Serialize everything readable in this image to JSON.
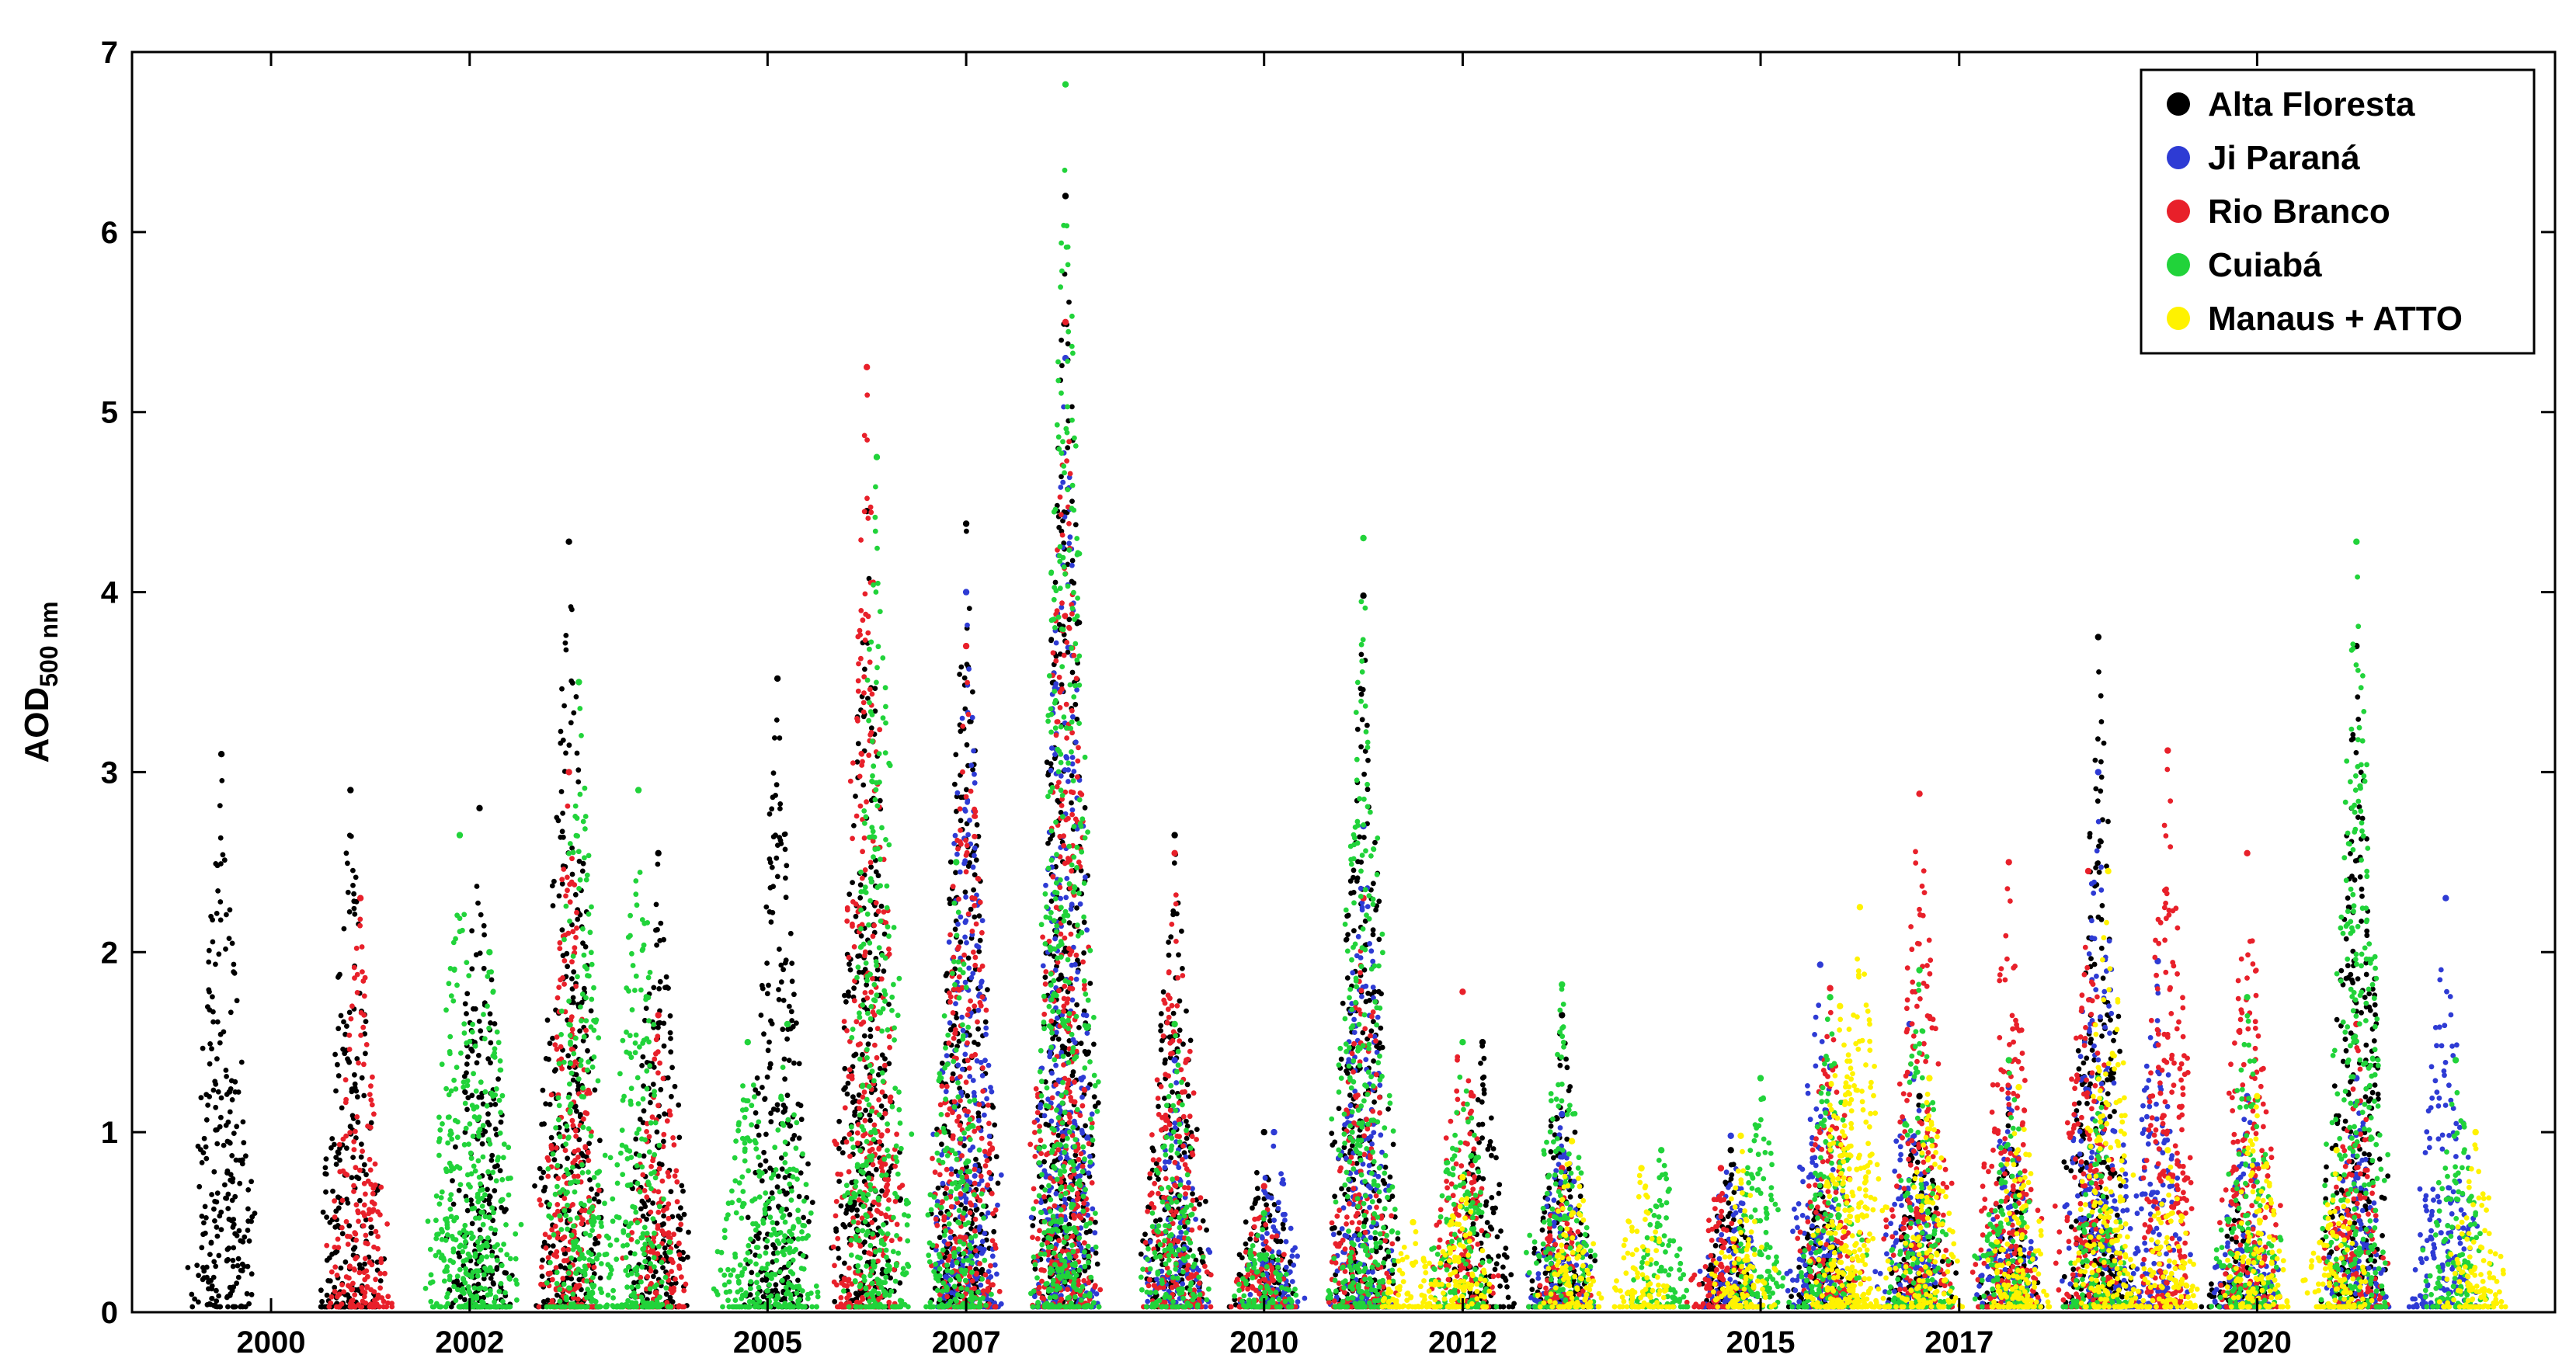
{
  "chart_data": {
    "type": "scatter",
    "title": "",
    "xlabel": "",
    "ylabel": "AOD",
    "ylabel_subscript": "500 nm",
    "x_ticks": [
      "2000",
      "2002",
      "2005",
      "2007",
      "2010",
      "2012",
      "2015",
      "2017",
      "2020"
    ],
    "x_tick_positions": [
      2000.0,
      2002.0,
      2005.0,
      2007.0,
      2010.0,
      2012.0,
      2015.0,
      2017.0,
      2020.0
    ],
    "xlim": [
      1998.6,
      2023.0
    ],
    "ylim": [
      0,
      7
    ],
    "y_ticks": [
      0,
      1,
      2,
      3,
      4,
      5,
      6,
      7
    ],
    "grid": false,
    "legend_position": "top-right",
    "series": [
      {
        "name": "Alta Floresta",
        "color": "#000000",
        "peaks": [
          [
            1999.5,
            3.1
          ],
          [
            2000.8,
            2.9
          ],
          [
            2002.1,
            2.8
          ],
          [
            2003.0,
            4.28
          ],
          [
            2003.9,
            2.55
          ],
          [
            2005.1,
            3.52
          ],
          [
            2006.0,
            4.45
          ],
          [
            2007.0,
            4.38
          ],
          [
            2008.0,
            6.2
          ],
          [
            2009.1,
            2.65
          ],
          [
            2010.0,
            1.0
          ],
          [
            2011.0,
            3.98
          ],
          [
            2012.2,
            1.5
          ],
          [
            2013.0,
            1.65
          ],
          [
            2014.7,
            0.9
          ],
          [
            2015.6,
            0.7
          ],
          [
            2016.6,
            1.2
          ],
          [
            2017.5,
            1.1
          ],
          [
            2018.4,
            3.75
          ],
          [
            2019.8,
            0.6
          ],
          [
            2021.0,
            3.7
          ]
        ]
      },
      {
        "name": "Ji Paraná",
        "color": "#2e3bd4",
        "peaks": [
          [
            2007.0,
            4.0
          ],
          [
            2008.0,
            5.3
          ],
          [
            2009.1,
            1.4
          ],
          [
            2010.1,
            1.0
          ],
          [
            2011.0,
            2.7
          ],
          [
            2013.0,
            1.1
          ],
          [
            2014.7,
            0.98
          ],
          [
            2015.6,
            1.93
          ],
          [
            2016.5,
            1.6
          ],
          [
            2017.5,
            1.25
          ],
          [
            2018.4,
            3.0
          ],
          [
            2019.0,
            1.95
          ],
          [
            2019.9,
            1.2
          ],
          [
            2021.0,
            1.3
          ],
          [
            2021.9,
            2.3
          ]
        ]
      },
      {
        "name": "Rio Branco",
        "color": "#e8202a",
        "peaks": [
          [
            2000.9,
            2.3
          ],
          [
            2003.0,
            3.0
          ],
          [
            2003.9,
            1.65
          ],
          [
            2006.0,
            5.25
          ],
          [
            2007.0,
            3.7
          ],
          [
            2008.0,
            5.5
          ],
          [
            2009.1,
            2.55
          ],
          [
            2010.0,
            0.7
          ],
          [
            2011.0,
            2.3
          ],
          [
            2012.0,
            1.78
          ],
          [
            2013.0,
            0.8
          ],
          [
            2014.6,
            0.8
          ],
          [
            2015.7,
            1.8
          ],
          [
            2016.6,
            2.88
          ],
          [
            2017.5,
            2.5
          ],
          [
            2018.3,
            2.45
          ],
          [
            2019.1,
            3.12
          ],
          [
            2019.9,
            2.55
          ],
          [
            2021.0,
            1.6
          ]
        ]
      },
      {
        "name": "Cuiabá",
        "color": "#21d33a",
        "peaks": [
          [
            2001.9,
            2.65
          ],
          [
            2002.2,
            2.0
          ],
          [
            2003.1,
            3.5
          ],
          [
            2003.7,
            2.9
          ],
          [
            2004.8,
            1.5
          ],
          [
            2005.2,
            1.6
          ],
          [
            2006.1,
            4.75
          ],
          [
            2006.9,
            2.5
          ],
          [
            2008.0,
            6.82
          ],
          [
            2009.1,
            1.6
          ],
          [
            2010.0,
            0.55
          ],
          [
            2011.0,
            4.3
          ],
          [
            2012.0,
            1.5
          ],
          [
            2013.0,
            1.82
          ],
          [
            2014.0,
            0.9
          ],
          [
            2015.0,
            1.3
          ],
          [
            2015.7,
            1.75
          ],
          [
            2016.6,
            1.9
          ],
          [
            2017.5,
            1.4
          ],
          [
            2018.4,
            1.3
          ],
          [
            2019.9,
            1.75
          ],
          [
            2021.0,
            4.28
          ],
          [
            2022.0,
            1.4
          ]
        ]
      },
      {
        "name": "Manaus + ATTO",
        "color": "#fff200",
        "peaks": [
          [
            2011.5,
            0.5
          ],
          [
            2012.0,
            0.75
          ],
          [
            2013.1,
            0.95
          ],
          [
            2013.8,
            0.8
          ],
          [
            2014.8,
            0.98
          ],
          [
            2015.8,
            1.7
          ],
          [
            2016.0,
            2.25
          ],
          [
            2016.7,
            1.3
          ],
          [
            2017.6,
            1.25
          ],
          [
            2018.5,
            2.45
          ],
          [
            2019.1,
            0.9
          ],
          [
            2020.0,
            1.2
          ],
          [
            2020.8,
            0.9
          ],
          [
            2022.2,
            1.0
          ]
        ]
      }
    ]
  }
}
